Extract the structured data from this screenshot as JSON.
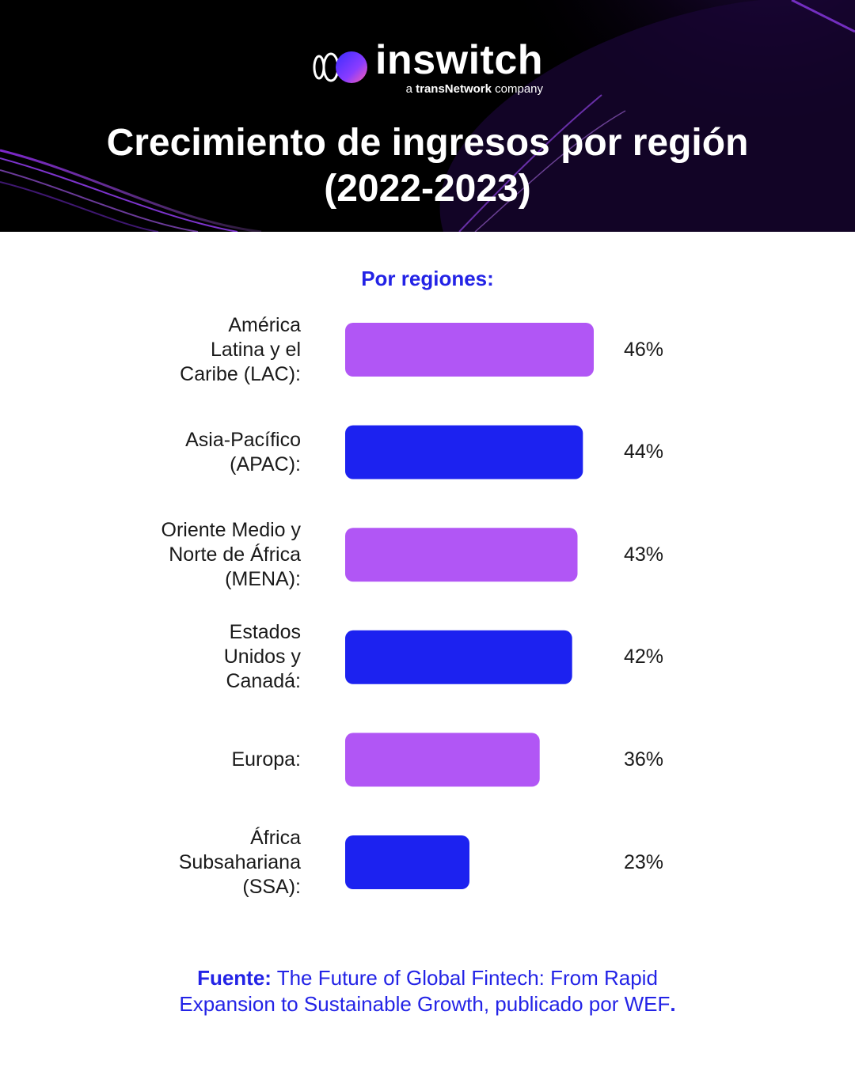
{
  "brand": {
    "name": "inswitch",
    "tagline_prefix": "a ",
    "tagline_bold": "transNetwork",
    "tagline_suffix": " company"
  },
  "title_line1": "Crecimiento de ingresos por región",
  "title_line2": "(2022-2023)",
  "colors": {
    "purple": "#b156f5",
    "blue": "#1c22f0",
    "accent_text": "#2323e6"
  },
  "chart_data": {
    "type": "bar",
    "orientation": "horizontal",
    "title": "Por regiones:",
    "categories": [
      "América\nLatina y el\nCaribe (LAC):",
      "Asia-Pacífico\n(APAC):",
      "Oriente Medio y\nNorte de África\n(MENA):",
      "Estados\nUnidos y\nCanadá:",
      "Europa:",
      "África\nSubsahariana\n(SSA):"
    ],
    "values": [
      46,
      44,
      43,
      42,
      36,
      23
    ],
    "value_labels": [
      "46%",
      "44%",
      "43%",
      "42%",
      "36%",
      "23%"
    ],
    "bar_colors": [
      "#b156f5",
      "#1c22f0",
      "#b156f5",
      "#1c22f0",
      "#b156f5",
      "#1c22f0"
    ],
    "unit": "%",
    "xlim": [
      0,
      100
    ],
    "grid": false
  },
  "source": {
    "label": "Fuente:",
    "text_line1": " The Future of Global Fintech: From Rapid",
    "text_line2": "Expansion to Sustainable Growth, publicado por WEF",
    "end": "."
  }
}
